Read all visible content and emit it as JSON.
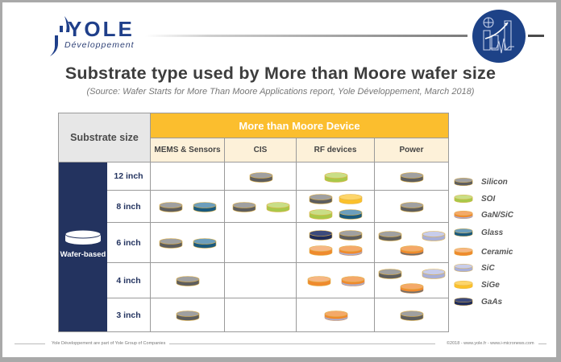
{
  "header": {
    "logo_name": "YOLE",
    "logo_sub": "Développement",
    "title": "Substrate type used by More than Moore wafer size",
    "subtitle": "(Source: Wafer Starts for More Than Moore Applications report, Yole Développement, March 2018)"
  },
  "table": {
    "corner_label": "Substrate size",
    "group_header": "More than Moore Device",
    "columns": [
      "MEMS & Sensors",
      "CIS",
      "RF devices",
      "Power"
    ],
    "row_group_label": "Wafer-based",
    "rows": [
      {
        "size": "12 inch",
        "cells": [
          [],
          [
            "Silicon"
          ],
          [
            "SOI"
          ],
          [
            "Silicon"
          ]
        ]
      },
      {
        "size": "8 inch",
        "cells": [
          [
            "Silicon",
            "Glass"
          ],
          [
            "Silicon",
            "SOI"
          ],
          [
            "Silicon",
            "SiGe",
            "SOI",
            "Glass"
          ],
          [
            "Silicon"
          ]
        ]
      },
      {
        "size": "6 inch",
        "cells": [
          [
            "Silicon",
            "Glass"
          ],
          [],
          [
            "GaAs",
            "Silicon",
            "Ceramic",
            "GaN/SiC"
          ],
          [
            "Silicon",
            "SiC",
            "GaN/Si"
          ]
        ]
      },
      {
        "size": "4 inch",
        "cells": [
          [
            "Silicon"
          ],
          [],
          [
            "Ceramic",
            "GaN/SiC"
          ],
          [
            "Silicon",
            "SiC",
            "GaN/Si"
          ]
        ]
      },
      {
        "size": "3 inch",
        "cells": [
          [
            "Silicon"
          ],
          [],
          [
            "GaN/SiC"
          ],
          [
            "Silicon"
          ]
        ]
      }
    ]
  },
  "legend": {
    "items": [
      {
        "label": "Silicon",
        "color": "#5e5e5e",
        "top": "#a0a0a0"
      },
      {
        "label": "SOI",
        "color": "#a9c84a",
        "top": "#c9de86"
      },
      {
        "label": "GaN/SiC",
        "color": "#ef8a2e",
        "top": "#f4a969"
      },
      {
        "label": "Glass",
        "color": "#1a5a7e",
        "top": "#6c9ebc"
      },
      {
        "label": "Ceramic",
        "color": "#ef8a2e",
        "top": "#f6b784"
      },
      {
        "label": "SiC",
        "color": "#a8afd8",
        "top": "#c8cdeb"
      },
      {
        "label": "SiGe",
        "color": "#fbc12a",
        "top": "#fdd56a"
      },
      {
        "label": "GaAs",
        "color": "#1f2c5a",
        "top": "#3c4a7c"
      }
    ]
  },
  "footer": {
    "left": "Yole Développement are part of Yole Group of Companies",
    "right": "©2018 - www.yole.fr - www.i-micronews.com"
  }
}
